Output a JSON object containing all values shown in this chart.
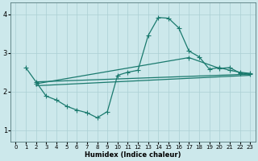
{
  "xlabel": "Humidex (Indice chaleur)",
  "bg_color": "#cce8eb",
  "line_color": "#1a7a6e",
  "grid_color": "#aacfd4",
  "xlim": [
    -0.5,
    23.5
  ],
  "ylim": [
    0.7,
    4.3
  ],
  "xticks": [
    0,
    1,
    2,
    3,
    4,
    5,
    6,
    7,
    8,
    9,
    10,
    11,
    12,
    13,
    14,
    15,
    16,
    17,
    18,
    19,
    20,
    21,
    22,
    23
  ],
  "yticks": [
    1,
    2,
    3,
    4
  ],
  "line1_x": [
    1,
    2,
    3,
    4,
    5,
    6,
    7,
    8,
    9,
    10,
    11,
    12,
    13,
    14,
    15,
    16,
    17,
    18,
    19,
    20,
    21,
    22,
    23
  ],
  "line1_y": [
    2.62,
    2.25,
    1.88,
    1.78,
    1.62,
    1.52,
    1.45,
    1.32,
    1.48,
    2.42,
    2.5,
    2.55,
    3.45,
    3.92,
    3.9,
    3.65,
    3.05,
    2.9,
    2.58,
    2.62,
    2.55,
    2.5,
    2.47
  ],
  "line2_x": [
    2,
    23
  ],
  "line2_y": [
    2.25,
    2.45
  ],
  "line3_x": [
    2,
    17,
    20,
    21,
    22,
    23
  ],
  "line3_y": [
    2.2,
    2.88,
    2.6,
    2.62,
    2.48,
    2.45
  ],
  "line4_x": [
    2,
    23
  ],
  "line4_y": [
    2.15,
    2.42
  ]
}
